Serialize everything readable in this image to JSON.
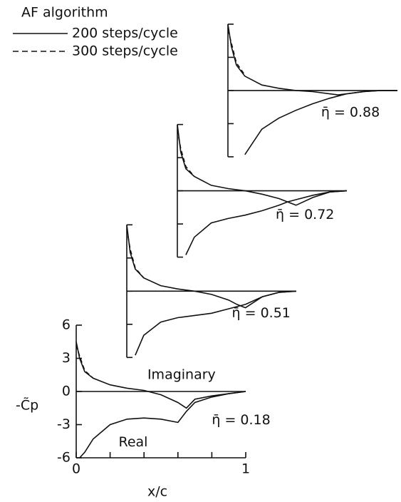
{
  "chart_data": {
    "type": "line",
    "legend": {
      "title": "AF algorithm",
      "entries": [
        {
          "name": "200 steps/cycle",
          "dashed": false
        },
        {
          "name": "300 steps/cycle",
          "dashed": true
        }
      ]
    },
    "ylabel": "-C̃p",
    "xlabel": "x/c",
    "ylim": [
      -6,
      6
    ],
    "yticks": [
      6,
      3,
      0,
      -3,
      -6
    ],
    "xlim": [
      0,
      1
    ],
    "xticks": [
      0,
      1
    ],
    "xminor": [
      0.2,
      0.4,
      0.6,
      0.8
    ],
    "annotations": [
      "Imaginary",
      "Real"
    ],
    "x": [
      0,
      0.02,
      0.05,
      0.1,
      0.2,
      0.3,
      0.4,
      0.5,
      0.6,
      0.65,
      0.7,
      0.8,
      0.9,
      1.0
    ],
    "panels": [
      {
        "label": "η̄ = 0.18",
        "series": [
          {
            "name": "200 steps/cycle",
            "values": [
              4.5,
              3,
              1.8,
              1.2,
              0.6,
              0.3,
              0.1,
              -0.3,
              -1.0,
              -1.5,
              -0.7,
              -0.4,
              -0.2,
              0
            ]
          },
          {
            "name": "200 steps/cycle",
            "values": [
              null,
              -6,
              -5.5,
              -4.3,
              -3.0,
              -2.5,
              -2.4,
              -2.5,
              -2.8,
              -1.8,
              -1.0,
              -0.5,
              -0.2,
              0
            ]
          },
          {
            "name": "300 steps/cycle",
            "values": [
              4.2,
              3.2,
              1.9,
              1.2,
              null,
              null,
              null,
              null,
              null,
              null,
              null,
              null,
              null,
              null
            ]
          }
        ]
      },
      {
        "label": "η̄ = 0.51",
        "series": [
          {
            "name": "200 steps/cycle",
            "values": [
              6,
              3.5,
              2,
              1.2,
              0.5,
              0.2,
              0,
              -0.3,
              -0.8,
              -1.2,
              -1.5,
              -0.5,
              -0.1,
              0
            ]
          },
          {
            "name": "200 steps/cycle",
            "values": [
              null,
              null,
              -5.8,
              -4,
              -2.8,
              -2.4,
              -2.2,
              -2.0,
              -1.6,
              -1.4,
              -1.2,
              -0.5,
              -0.1,
              0
            ]
          },
          {
            "name": "300 steps/cycle",
            "values": [
              5.6,
              3.8,
              2.1,
              1.2,
              null,
              null,
              null,
              null,
              null,
              null,
              null,
              null,
              null,
              null
            ]
          }
        ]
      },
      {
        "label": "η̄ = 0.72",
        "series": [
          {
            "name": "200 steps/cycle",
            "values": [
              6,
              3.5,
              2,
              1.3,
              0.5,
              0.2,
              0,
              -0.3,
              -0.7,
              -1.0,
              -1.3,
              -0.6,
              -0.1,
              0
            ]
          },
          {
            "name": "200 steps/cycle",
            "values": [
              null,
              null,
              -5.8,
              -4.2,
              -2.9,
              -2.5,
              -2.2,
              -1.8,
              -1.3,
              -1.0,
              -0.8,
              -0.4,
              -0.1,
              0
            ]
          },
          {
            "name": "300 steps/cycle",
            "values": [
              5.5,
              3.8,
              2.2,
              1.3,
              null,
              null,
              null,
              null,
              null,
              null,
              null,
              null,
              null,
              null
            ]
          }
        ]
      },
      {
        "label": "η̄ = 0.88",
        "series": [
          {
            "name": "200 steps/cycle",
            "values": [
              6,
              4,
              2.3,
              1.3,
              0.5,
              0.2,
              0,
              -0.1,
              -0.3,
              -0.4,
              -0.3,
              -0.1,
              0,
              0
            ]
          },
          {
            "name": "200 steps/cycle",
            "values": [
              null,
              null,
              null,
              -5.8,
              -3.5,
              -2.5,
              -1.8,
              -1.2,
              -0.7,
              -0.5,
              -0.3,
              -0.1,
              0,
              0
            ]
          },
          {
            "name": "300 steps/cycle",
            "values": [
              5.5,
              4.3,
              2.5,
              1.4,
              null,
              null,
              null,
              null,
              null,
              null,
              null,
              null,
              null,
              null
            ]
          }
        ]
      }
    ]
  }
}
